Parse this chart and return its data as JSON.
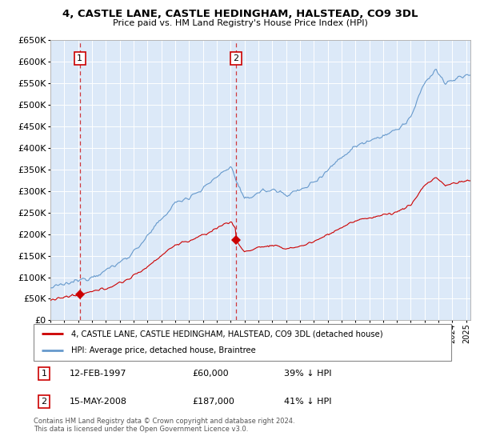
{
  "title": "4, CASTLE LANE, CASTLE HEDINGHAM, HALSTEAD, CO9 3DL",
  "subtitle": "Price paid vs. HM Land Registry's House Price Index (HPI)",
  "legend_line1": "4, CASTLE LANE, CASTLE HEDINGHAM, HALSTEAD, CO9 3DL (detached house)",
  "legend_line2": "HPI: Average price, detached house, Braintree",
  "sale1_date": "12-FEB-1997",
  "sale1_price": "£60,000",
  "sale1_hpi": "39% ↓ HPI",
  "sale2_date": "15-MAY-2008",
  "sale2_price": "£187,000",
  "sale2_hpi": "41% ↓ HPI",
  "footer": "Contains HM Land Registry data © Crown copyright and database right 2024.\nThis data is licensed under the Open Government Licence v3.0.",
  "ylim": [
    0,
    650000
  ],
  "yticks": [
    0,
    50000,
    100000,
    150000,
    200000,
    250000,
    300000,
    350000,
    400000,
    450000,
    500000,
    550000,
    600000,
    650000
  ],
  "plot_bg": "#dce9f8",
  "red_line_color": "#cc0000",
  "blue_line_color": "#6699cc",
  "vline_color": "#cc0000",
  "marker_color": "#cc0000",
  "sale1_x": 1997.12,
  "sale1_y": 60000,
  "sale2_x": 2008.37,
  "sale2_y": 187000,
  "xlim_left": 1995.0,
  "xlim_right": 2025.3
}
